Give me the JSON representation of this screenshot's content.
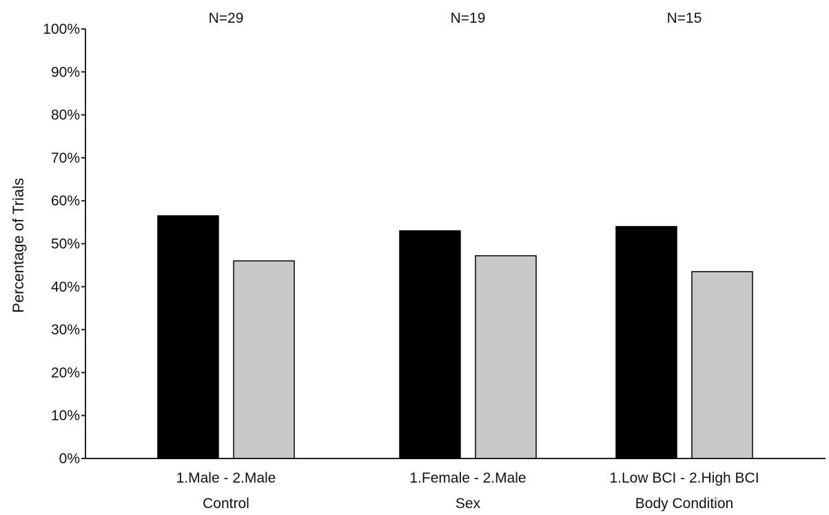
{
  "chart_data": {
    "type": "bar",
    "title": "",
    "xlabel": "",
    "ylabel": "Percentage of Trials",
    "ylim": [
      0,
      100
    ],
    "yticks": [
      "0%",
      "10%",
      "20%",
      "30%",
      "40%",
      "50%",
      "60%",
      "70%",
      "80%",
      "90%",
      "100%"
    ],
    "grid": false,
    "categories": [
      {
        "line1": "1.Male - 2.Male",
        "line2": "Control",
        "n": "N=29"
      },
      {
        "line1": "1.Female - 2.Male",
        "line2": "Sex",
        "n": "N=19"
      },
      {
        "line1": "1.Low BCI - 2.High BCI",
        "line2": "Body Condition",
        "n": "N=15"
      }
    ],
    "series": [
      {
        "values": [
          56.5,
          53,
          54
        ],
        "color": "#000000"
      },
      {
        "values": [
          46,
          47.2,
          43.5
        ],
        "color": "#c8c8c8"
      }
    ]
  }
}
